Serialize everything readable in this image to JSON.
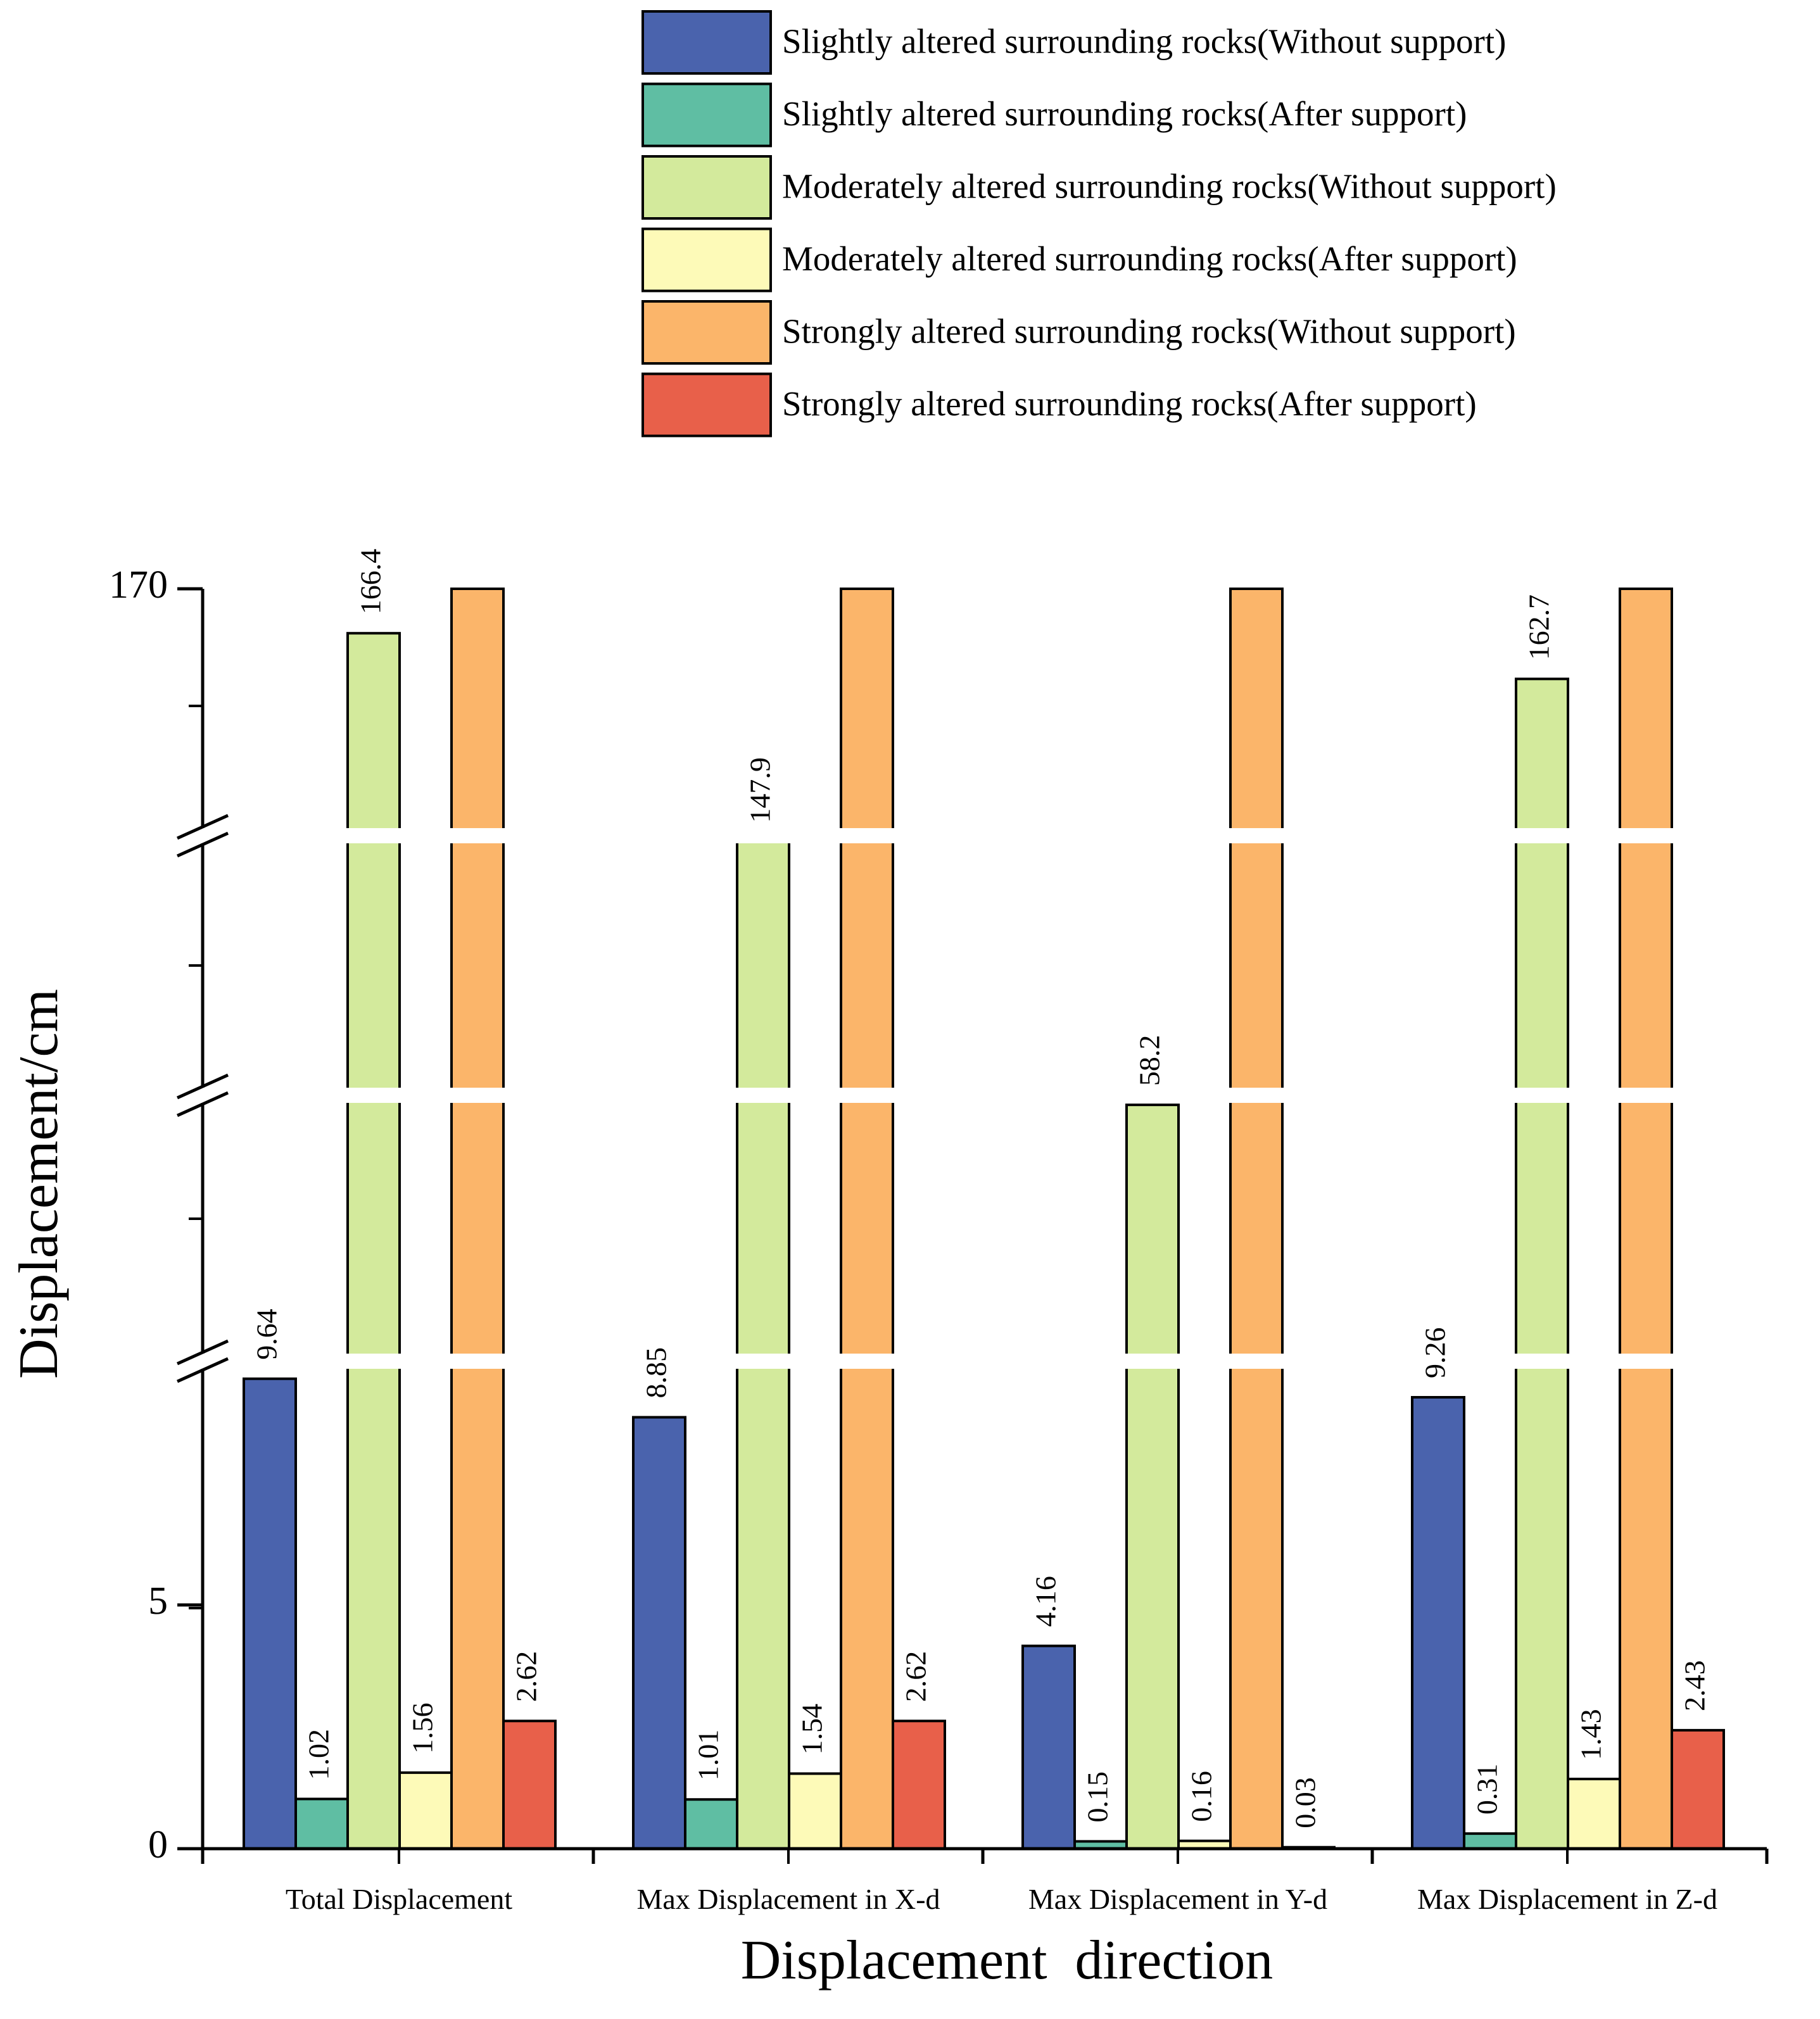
{
  "chart_data": {
    "type": "bar",
    "title": "",
    "xlabel": "Displacement  direction",
    "ylabel": "Displacement/cm",
    "categories": [
      "Total Displacement",
      "Max Displacement in X-d",
      "Max Displacement in Y-d",
      "Max Displacement in Z-d"
    ],
    "series": [
      {
        "name": "Slightly altered surrounding rocks(Without support)",
        "color": "#4a63ad",
        "values": [
          9.64,
          8.85,
          4.16,
          9.26
        ],
        "labels": [
          "9.64",
          "8.85",
          "4.16",
          "9.26"
        ]
      },
      {
        "name": "Slightly altered surrounding rocks(After support)",
        "color": "#5fbea3",
        "values": [
          1.02,
          1.01,
          0.15,
          0.31
        ],
        "labels": [
          "1.02",
          "1.01",
          "0.15",
          "0.31"
        ]
      },
      {
        "name": "Moderately altered surrounding rocks(Without support)",
        "color": "#d3ea9c",
        "values": [
          166.4,
          147.9,
          58.2,
          162.7
        ],
        "labels": [
          "166.4",
          "147.9",
          "58.2",
          "162.7"
        ]
      },
      {
        "name": "Moderately altered surrounding rocks(After support)",
        "color": "#fdfab8",
        "values": [
          1.56,
          1.54,
          0.16,
          1.43
        ],
        "labels": [
          "1.56",
          "1.54",
          "0.16",
          "1.43"
        ]
      },
      {
        "name": "Strongly altered surrounding rocks(Without support)",
        "color": "#fbb56a",
        "values": [
          null,
          null,
          null,
          null
        ],
        "labels": []
      },
      {
        "name": "Strongly altered surrounding rocks(After support)",
        "color": "#e8604a",
        "values": [
          2.62,
          2.62,
          0.03,
          2.43
        ],
        "labels": [
          "2.62",
          "2.62",
          "0.03",
          "2.43"
        ]
      }
    ],
    "y_axis": {
      "ticks": [
        "0",
        "5",
        "170"
      ],
      "broken": true,
      "ylim": [
        0,
        170
      ]
    },
    "legend_position": "top-right"
  }
}
